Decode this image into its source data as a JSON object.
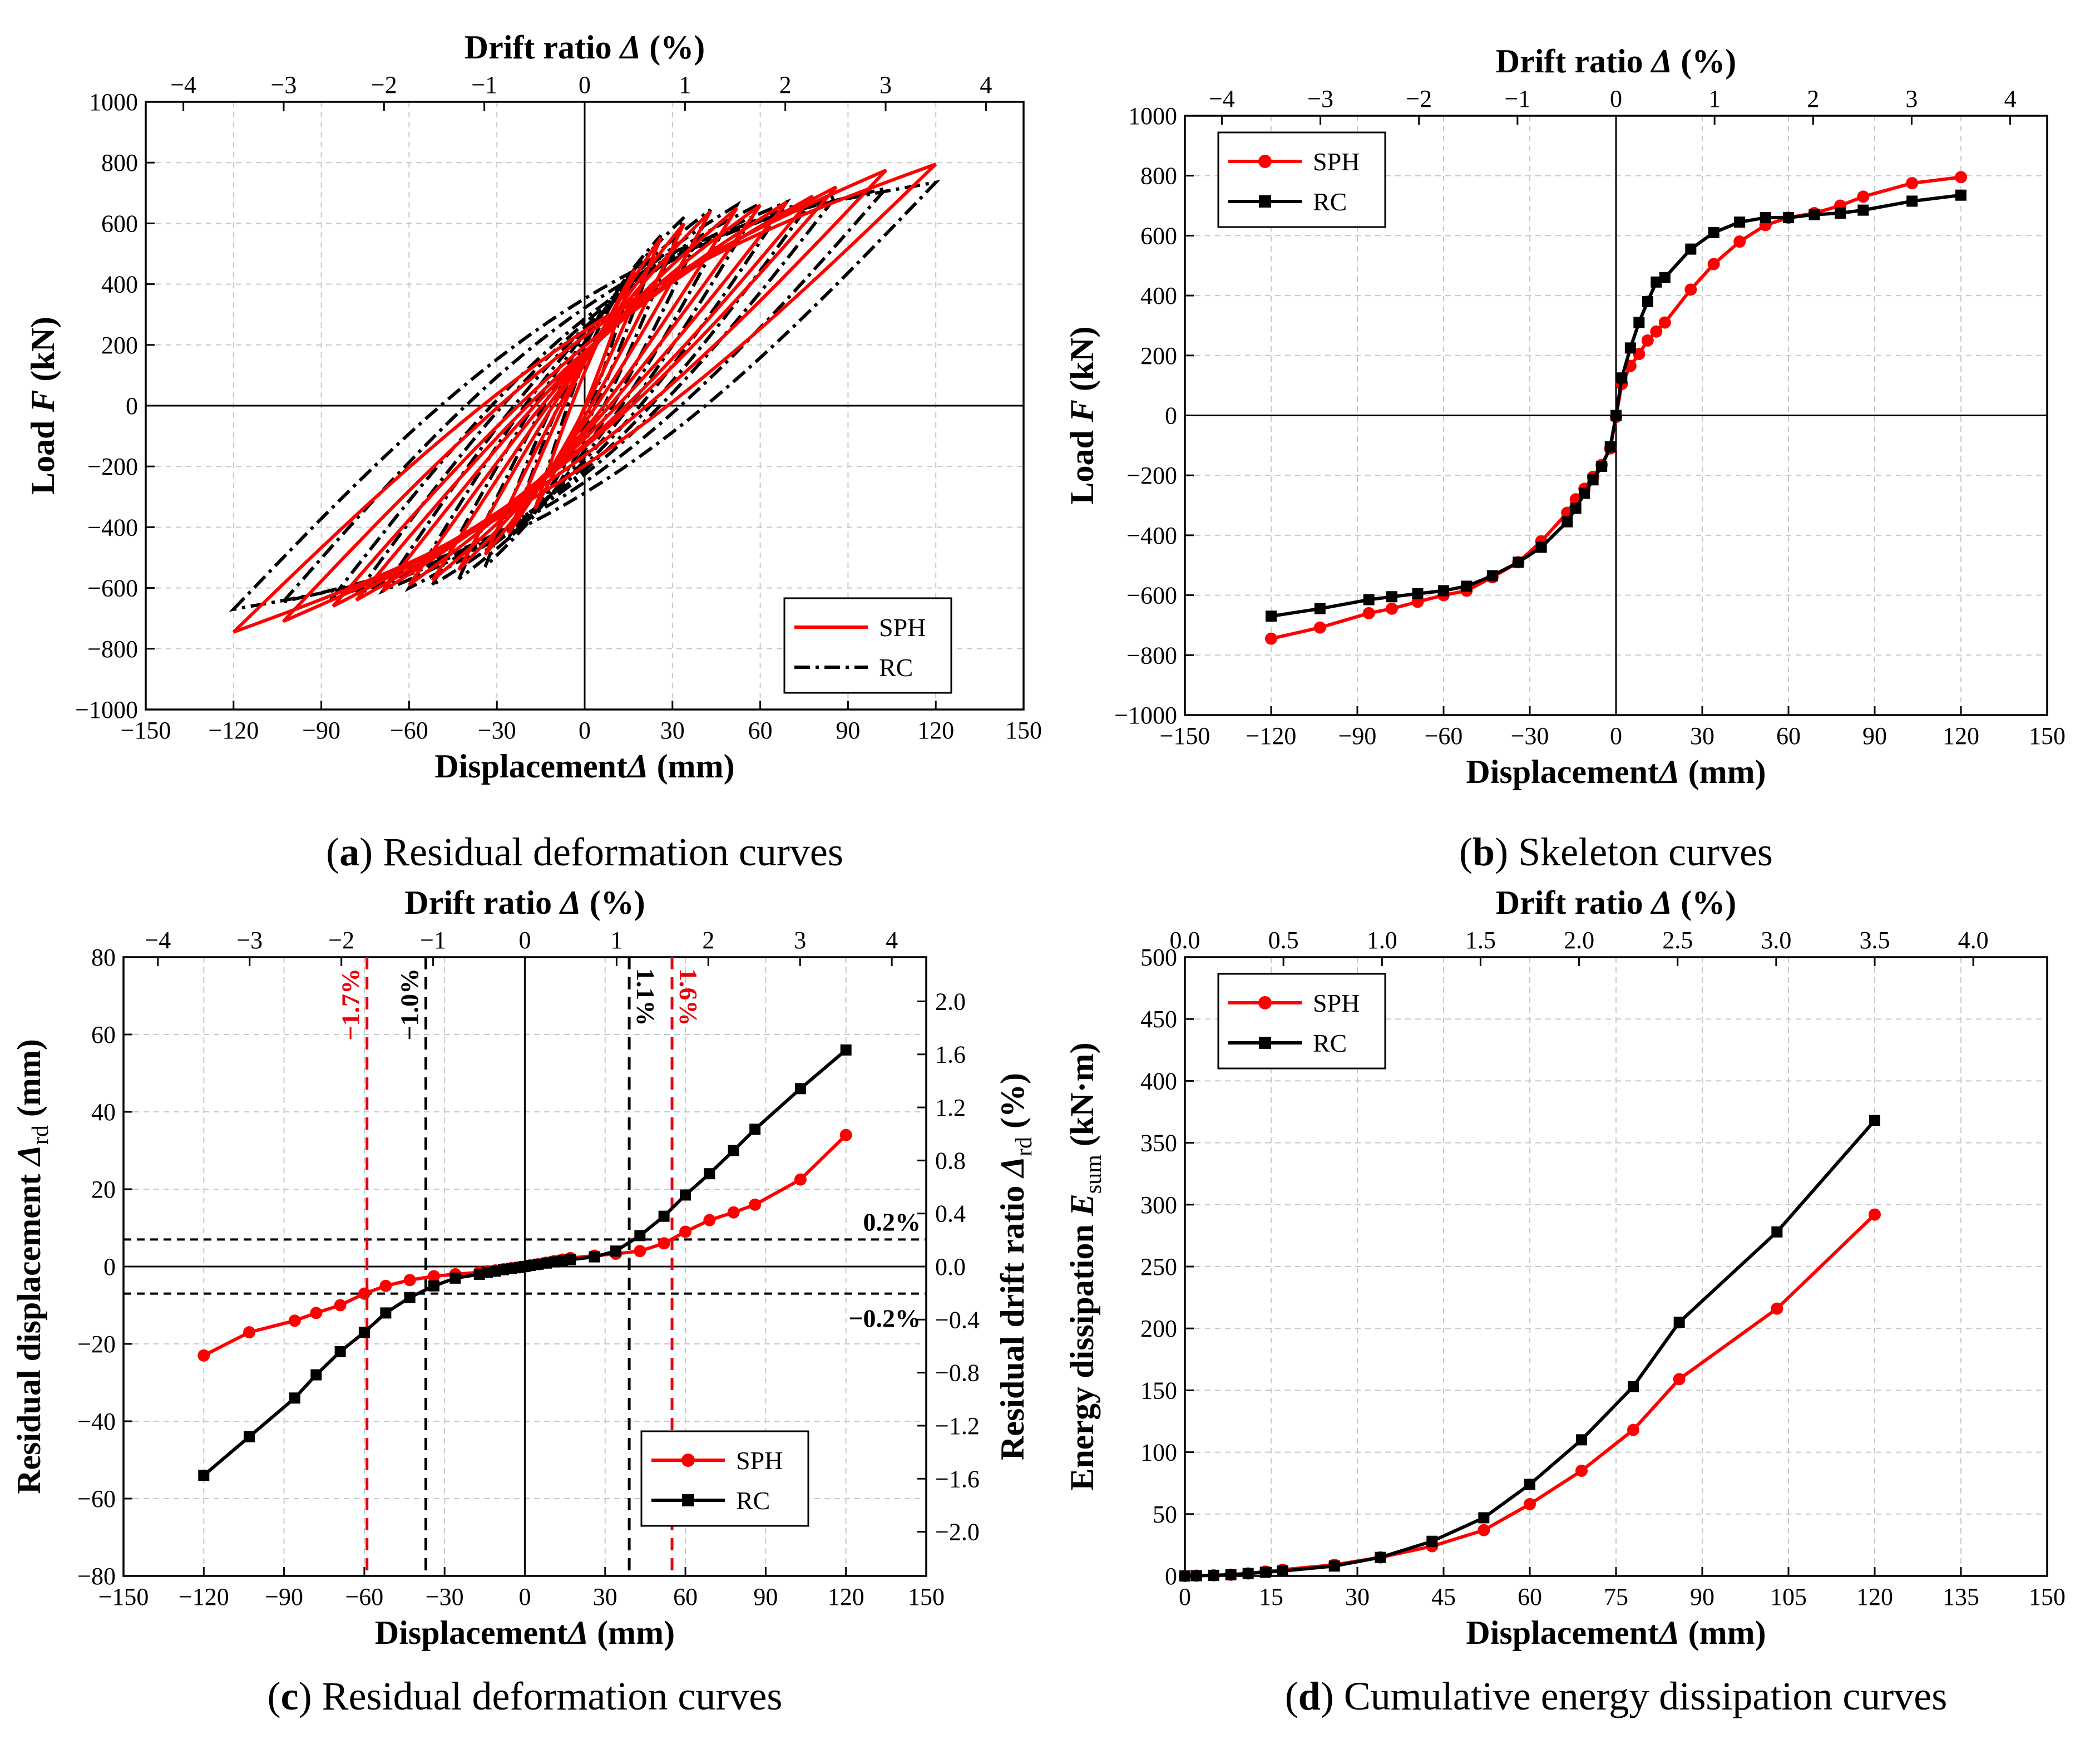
{
  "colors": {
    "sph": "#ff0000",
    "rc": "#000000",
    "grid": "#c8c8c8",
    "dash_red": "#e8000a"
  },
  "chart_data": [
    {
      "id": "a",
      "type": "line",
      "caption_letter": "a",
      "caption_text": " Residual deformation curves",
      "title": "",
      "xlabel": "Displacement",
      "xlabel_sym": "Δ",
      "xlabel_unit": " (mm)",
      "ylabel": "Load ",
      "ylabel_sym": "F",
      "ylabel_unit": " (kN)",
      "toplabel": "Drift ratio ",
      "toplabel_sym": "Δ",
      "toplabel_unit": " (%)",
      "xlim": [
        -150,
        150
      ],
      "ylim": [
        -1000,
        1000
      ],
      "xticks": [
        -150,
        -120,
        -90,
        -60,
        -30,
        0,
        30,
        60,
        90,
        120,
        150
      ],
      "xtick_labels": [
        "−150",
        "−120",
        "−90",
        "−60",
        "−30",
        "0",
        "30",
        "60",
        "90",
        "120",
        "150"
      ],
      "yticks": [
        -1000,
        -800,
        -600,
        -400,
        -200,
        0,
        200,
        400,
        600,
        800,
        1000
      ],
      "ytick_labels": [
        "−1000",
        "−800",
        "−600",
        "−400",
        "−200",
        "0",
        "200",
        "400",
        "600",
        "800",
        "1000"
      ],
      "top_ticks": [
        -4,
        -3,
        -2,
        -1,
        0,
        1,
        2,
        3,
        4
      ],
      "top_tick_labels": [
        "−4",
        "−3",
        "−2",
        "−1",
        "0",
        "1",
        "2",
        "3",
        "4"
      ],
      "legend": [
        {
          "name": "SPH",
          "style": "solid-red"
        },
        {
          "name": "RC",
          "style": "dashdot-black"
        }
      ],
      "legend_position": "bottom-right",
      "hysteresis": {
        "SPH": {
          "disp_amp": [
            17,
            26,
            34,
            43,
            52,
            60,
            69,
            78,
            86,
            103,
            120
          ],
          "peak_pos": [
            448,
            552,
            600,
            640,
            650,
            660,
            670,
            690,
            720,
            775,
            795
          ],
          "peak_neg": [
            -340,
            -420,
            -490,
            -540,
            -575,
            -590,
            -610,
            -640,
            -660,
            -710,
            -745
          ]
        },
        "RC": {
          "disp_amp": [
            17,
            26,
            34,
            43,
            52,
            60,
            69,
            78,
            86,
            103,
            120
          ],
          "peak_pos": [
            450,
            560,
            620,
            645,
            660,
            665,
            670,
            680,
            690,
            715,
            735
          ],
          "peak_neg": [
            -350,
            -440,
            -530,
            -570,
            -590,
            -600,
            -610,
            -620,
            -630,
            -645,
            -670
          ]
        }
      }
    },
    {
      "id": "b",
      "type": "line",
      "caption_letter": "b",
      "caption_text": " Skeleton curves",
      "xlabel": "Displacement",
      "xlabel_sym": "Δ",
      "xlabel_unit": " (mm)",
      "ylabel": "Load ",
      "ylabel_sym": "F",
      "ylabel_unit": " (kN)",
      "toplabel": "Drift ratio ",
      "toplabel_sym": "Δ",
      "toplabel_unit": " (%)",
      "xlim": [
        -150,
        150
      ],
      "ylim": [
        -1000,
        1000
      ],
      "xticks": [
        -150,
        -120,
        -90,
        -60,
        -30,
        0,
        30,
        60,
        90,
        120,
        150
      ],
      "xtick_labels": [
        "−150",
        "−120",
        "−90",
        "−60",
        "−30",
        "0",
        "30",
        "60",
        "90",
        "120",
        "150"
      ],
      "yticks": [
        -1000,
        -800,
        -600,
        -400,
        -200,
        0,
        200,
        400,
        600,
        800,
        1000
      ],
      "ytick_labels": [
        "−1000",
        "−800",
        "−600",
        "−400",
        "−200",
        "0",
        "200",
        "400",
        "600",
        "800",
        "1000"
      ],
      "top_ticks": [
        -4,
        -3,
        -2,
        -1,
        0,
        1,
        2,
        3,
        4
      ],
      "top_tick_labels": [
        "−4",
        "−3",
        "−2",
        "−1",
        "0",
        "1",
        "2",
        "3",
        "4"
      ],
      "legend": [
        {
          "name": "SPH",
          "style": "solid-red-circle"
        },
        {
          "name": "RC",
          "style": "solid-black-square"
        }
      ],
      "legend_position": "top-left",
      "series": [
        {
          "name": "SPH",
          "x": [
            -120,
            -103,
            -86,
            -78,
            -69,
            -60,
            -52,
            -43,
            -34,
            -26,
            -17,
            -14,
            -11,
            -8,
            -5,
            -2,
            0,
            2,
            5,
            8,
            11,
            14,
            17,
            26,
            34,
            43,
            52,
            60,
            69,
            78,
            86,
            103,
            120
          ],
          "y": [
            -745,
            -708,
            -660,
            -645,
            -622,
            -600,
            -585,
            -540,
            -490,
            -420,
            -325,
            -280,
            -245,
            -205,
            -165,
            -110,
            -5,
            105,
            165,
            205,
            250,
            280,
            310,
            420,
            505,
            580,
            635,
            660,
            675,
            700,
            730,
            775,
            795
          ]
        },
        {
          "name": "RC",
          "x": [
            -120,
            -103,
            -86,
            -78,
            -69,
            -60,
            -52,
            -43,
            -34,
            -26,
            -17,
            -14,
            -11,
            -8,
            -5,
            -2,
            0,
            2,
            5,
            8,
            11,
            14,
            17,
            26,
            34,
            43,
            52,
            60,
            69,
            78,
            86,
            103,
            120
          ],
          "y": [
            -670,
            -645,
            -615,
            -605,
            -595,
            -585,
            -570,
            -535,
            -490,
            -440,
            -355,
            -310,
            -260,
            -215,
            -170,
            -105,
            0,
            125,
            225,
            310,
            380,
            445,
            460,
            555,
            610,
            645,
            660,
            660,
            670,
            675,
            685,
            715,
            735
          ]
        }
      ]
    },
    {
      "id": "c",
      "type": "line",
      "caption_letter": "c",
      "caption_text": " Residual deformation curves",
      "xlabel": "Displacement",
      "xlabel_sym": "Δ",
      "xlabel_unit": " (mm)",
      "ylabel": "Residual displacement ",
      "ylabel_sym": "Δ",
      "ylabel_sub": "rd",
      "ylabel_unit": " (mm)",
      "y2label": "Residual drift ratio ",
      "y2label_sym": "Δ",
      "y2label_sub": "rd",
      "y2label_unit": " (%)",
      "toplabel": "Drift ratio ",
      "toplabel_sym": "Δ",
      "toplabel_unit": " (%)",
      "xlim": [
        -150,
        150
      ],
      "ylim": [
        -80,
        80
      ],
      "xticks": [
        -150,
        -120,
        -90,
        -60,
        -30,
        0,
        30,
        60,
        90,
        120,
        150
      ],
      "xtick_labels": [
        "−150",
        "−120",
        "−90",
        "−60",
        "−30",
        "0",
        "30",
        "60",
        "90",
        "120",
        "150"
      ],
      "yticks": [
        -80,
        -60,
        -40,
        -20,
        0,
        20,
        40,
        60,
        80
      ],
      "ytick_labels": [
        "−80",
        "−60",
        "−40",
        "−20",
        "0",
        "20",
        "40",
        "60",
        "80"
      ],
      "y2ticks": [
        -2.0,
        -1.6,
        -1.2,
        -0.8,
        -0.4,
        0.0,
        0.4,
        0.8,
        1.2,
        1.6,
        2.0
      ],
      "y2tick_labels": [
        "−2.0",
        "−1.6",
        "−1.2",
        "−0.8",
        "−0.4",
        "0.0",
        "0.4",
        "0.8",
        "1.2",
        "1.6",
        "2.0"
      ],
      "y2_per_mm": 0.029167,
      "top_ticks": [
        -4,
        -3,
        -2,
        -1,
        0,
        1,
        2,
        3,
        4
      ],
      "top_tick_labels": [
        "−4",
        "−3",
        "−2",
        "−1",
        "0",
        "1",
        "2",
        "3",
        "4"
      ],
      "legend": [
        {
          "name": "SPH",
          "style": "solid-red-circle"
        },
        {
          "name": "RC",
          "style": "solid-black-square"
        }
      ],
      "legend_position": "bottom-right",
      "ref_lines_y": [
        {
          "value": 7,
          "label": "0.2%"
        },
        {
          "value": -7,
          "label": "−0.2%"
        }
      ],
      "vlines": [
        {
          "x": -59,
          "label": "−1.7%",
          "color": "red"
        },
        {
          "x": -37,
          "label": "−1.0%",
          "color": "black"
        },
        {
          "x": 39,
          "label": "1.1%",
          "color": "black"
        },
        {
          "x": 55,
          "label": "1.6%",
          "color": "red"
        }
      ],
      "series": [
        {
          "name": "SPH",
          "x": [
            -120,
            -103,
            -86,
            -78,
            -69,
            -60,
            -52,
            -43,
            -34,
            -26,
            -17,
            -14,
            -11,
            -8,
            -5,
            -2,
            0,
            2,
            5,
            8,
            11,
            14,
            17,
            26,
            34,
            43,
            52,
            60,
            69,
            78,
            86,
            103,
            120
          ],
          "y": [
            -23,
            -17,
            -14,
            -12,
            -10,
            -7,
            -5,
            -3.5,
            -2.5,
            -2,
            -1.5,
            -1.2,
            -1,
            -0.7,
            -0.4,
            -0.2,
            0,
            0.3,
            0.6,
            1,
            1.4,
            1.8,
            2.2,
            2.8,
            3.3,
            4,
            6,
            9,
            12,
            14,
            16,
            22.5,
            34
          ]
        },
        {
          "name": "RC",
          "x": [
            -120,
            -103,
            -86,
            -78,
            -69,
            -60,
            -52,
            -43,
            -34,
            -26,
            -17,
            -14,
            -11,
            -8,
            -5,
            -2,
            0,
            2,
            5,
            8,
            11,
            14,
            17,
            26,
            34,
            43,
            52,
            60,
            69,
            78,
            86,
            103,
            120
          ],
          "y": [
            -54,
            -44,
            -34,
            -28,
            -22,
            -17,
            -12,
            -8,
            -5,
            -3,
            -2,
            -1.5,
            -1.2,
            -0.8,
            -0.5,
            -0.2,
            0,
            0.3,
            0.6,
            0.9,
            1.2,
            1.5,
            1.8,
            2.5,
            4,
            8,
            13,
            18.5,
            24,
            30,
            35.5,
            46,
            56
          ]
        }
      ]
    },
    {
      "id": "d",
      "type": "line",
      "caption_letter": "d",
      "caption_text": " Cumulative energy dissipation curves",
      "xlabel": "Displacement",
      "xlabel_sym": "Δ",
      "xlabel_unit": " (mm)",
      "ylabel": "Energy dissipation ",
      "ylabel_sym": "E",
      "ylabel_sub": "sum",
      "ylabel_unit": " (kN·m)",
      "toplabel": "Drift ratio ",
      "toplabel_sym": "Δ",
      "toplabel_unit": " (%)",
      "xlim": [
        0,
        150
      ],
      "ylim": [
        0,
        500
      ],
      "xticks": [
        0,
        15,
        30,
        45,
        60,
        75,
        90,
        105,
        120,
        135,
        150
      ],
      "xtick_labels": [
        "0",
        "15",
        "30",
        "45",
        "60",
        "75",
        "90",
        "105",
        "120",
        "135",
        "150"
      ],
      "yticks": [
        0,
        50,
        100,
        150,
        200,
        250,
        300,
        350,
        400,
        450,
        500
      ],
      "ytick_labels": [
        "0",
        "50",
        "100",
        "150",
        "200",
        "250",
        "300",
        "350",
        "400",
        "450",
        "500"
      ],
      "top_ticks": [
        0.0,
        0.5,
        1.0,
        1.5,
        2.0,
        2.5,
        3.0,
        3.5,
        4.0
      ],
      "top_tick_labels": [
        "0.0",
        "0.5",
        "1.0",
        "1.5",
        "2.0",
        "2.5",
        "3.0",
        "3.5",
        "4.0"
      ],
      "legend": [
        {
          "name": "SPH",
          "style": "solid-red-circle"
        },
        {
          "name": "RC",
          "style": "solid-black-square"
        }
      ],
      "legend_position": "top-left",
      "series": [
        {
          "name": "SPH",
          "x": [
            0,
            2,
            5,
            8,
            11,
            14,
            17,
            26,
            34,
            43,
            52,
            60,
            69,
            78,
            86,
            103,
            120
          ],
          "y": [
            0,
            0.2,
            0.5,
            1,
            2,
            3.5,
            5,
            9,
            15,
            24,
            37,
            58,
            85,
            118,
            159,
            216,
            292
          ]
        },
        {
          "name": "RC",
          "x": [
            0,
            2,
            5,
            8,
            11,
            14,
            17,
            26,
            34,
            43,
            52,
            60,
            69,
            78,
            86,
            103,
            120
          ],
          "y": [
            0,
            0.2,
            0.5,
            1,
            2,
            3,
            4,
            8,
            15,
            28,
            47,
            74,
            110,
            153,
            205,
            278,
            368
          ]
        }
      ]
    }
  ]
}
